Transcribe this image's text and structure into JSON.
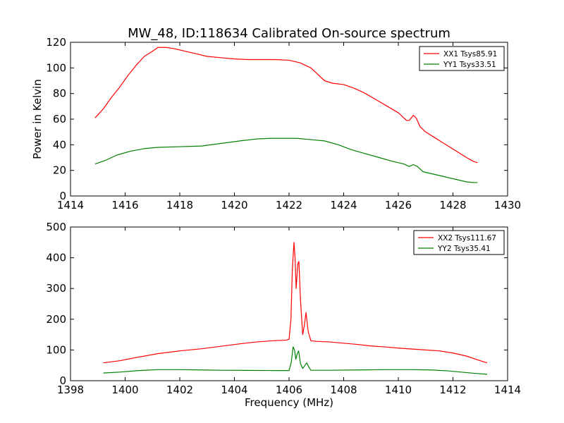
{
  "figure": {
    "title": "MW_48, ID:118634 Calibrated On-source spectrum"
  },
  "chart_data": [
    {
      "type": "line",
      "title": "MW_48, ID:118634 Calibrated On-source spectrum",
      "xlabel": "",
      "ylabel": "Power in Kelvin",
      "xlim": [
        1414,
        1430
      ],
      "ylim": [
        0,
        120
      ],
      "xticks": [
        1414,
        1416,
        1418,
        1420,
        1422,
        1424,
        1426,
        1428,
        1430
      ],
      "yticks": [
        0,
        20,
        40,
        60,
        80,
        100,
        120
      ],
      "grid": false,
      "legend": "top-right",
      "series": [
        {
          "name": "XX1 Tsys85.91",
          "color": "#ff0000",
          "points": [
            [
              1414.9,
              61
            ],
            [
              1415.2,
              68
            ],
            [
              1415.5,
              77
            ],
            [
              1415.8,
              85
            ],
            [
              1416.1,
              94
            ],
            [
              1416.4,
              102
            ],
            [
              1416.7,
              109
            ],
            [
              1417.0,
              113
            ],
            [
              1417.2,
              116
            ],
            [
              1417.5,
              116
            ],
            [
              1417.8,
              115
            ],
            [
              1418.2,
              113
            ],
            [
              1418.6,
              111
            ],
            [
              1419.0,
              109
            ],
            [
              1419.5,
              108
            ],
            [
              1420.0,
              107
            ],
            [
              1420.5,
              106.5
            ],
            [
              1421.0,
              106.5
            ],
            [
              1421.5,
              106.5
            ],
            [
              1422.0,
              106
            ],
            [
              1422.4,
              104
            ],
            [
              1422.8,
              100
            ],
            [
              1423.0,
              96
            ],
            [
              1423.3,
              90
            ],
            [
              1423.6,
              88
            ],
            [
              1424.0,
              87
            ],
            [
              1424.4,
              84
            ],
            [
              1424.8,
              80
            ],
            [
              1425.2,
              75
            ],
            [
              1425.6,
              70
            ],
            [
              1426.0,
              65
            ],
            [
              1426.3,
              59
            ],
            [
              1426.4,
              59
            ],
            [
              1426.55,
              63
            ],
            [
              1426.65,
              61
            ],
            [
              1426.8,
              54
            ],
            [
              1427.0,
              50
            ],
            [
              1427.3,
              46
            ],
            [
              1427.6,
              42
            ],
            [
              1427.9,
              38
            ],
            [
              1428.2,
              34
            ],
            [
              1428.5,
              30
            ],
            [
              1428.75,
              27
            ],
            [
              1428.9,
              26
            ]
          ]
        },
        {
          "name": "YY1 Tsys33.51",
          "color": "#008000",
          "points": [
            [
              1414.9,
              25
            ],
            [
              1415.3,
              28
            ],
            [
              1415.7,
              32
            ],
            [
              1416.2,
              35
            ],
            [
              1416.7,
              37
            ],
            [
              1417.2,
              38
            ],
            [
              1418.0,
              38.5
            ],
            [
              1418.8,
              39
            ],
            [
              1419.5,
              41
            ],
            [
              1420.2,
              43
            ],
            [
              1420.8,
              44.5
            ],
            [
              1421.3,
              45
            ],
            [
              1421.8,
              45
            ],
            [
              1422.3,
              45
            ],
            [
              1422.8,
              44
            ],
            [
              1423.3,
              43
            ],
            [
              1423.8,
              40
            ],
            [
              1424.3,
              36
            ],
            [
              1424.8,
              33
            ],
            [
              1425.3,
              30
            ],
            [
              1425.8,
              27
            ],
            [
              1426.2,
              25
            ],
            [
              1426.4,
              23
            ],
            [
              1426.55,
              24.5
            ],
            [
              1426.7,
              23
            ],
            [
              1426.9,
              19
            ],
            [
              1427.3,
              17
            ],
            [
              1427.7,
              15
            ],
            [
              1428.1,
              13
            ],
            [
              1428.5,
              11
            ],
            [
              1428.75,
              10.5
            ],
            [
              1428.9,
              10.5
            ]
          ]
        }
      ]
    },
    {
      "type": "line",
      "title": "",
      "xlabel": "Frequency (MHz)",
      "ylabel": "",
      "xlim": [
        1398,
        1414
      ],
      "ylim": [
        0,
        500
      ],
      "xticks": [
        1398,
        1400,
        1402,
        1404,
        1406,
        1408,
        1410,
        1412,
        1414
      ],
      "yticks": [
        0,
        100,
        200,
        300,
        400,
        500
      ],
      "grid": false,
      "legend": "top-right",
      "series": [
        {
          "name": "XX2 Tsys111.67",
          "color": "#ff0000",
          "points": [
            [
              1399.2,
              58
            ],
            [
              1399.8,
              65
            ],
            [
              1400.5,
              77
            ],
            [
              1401.2,
              88
            ],
            [
              1402.0,
              97
            ],
            [
              1402.8,
              104
            ],
            [
              1403.5,
              112
            ],
            [
              1404.2,
              120
            ],
            [
              1404.8,
              126
            ],
            [
              1405.4,
              130
            ],
            [
              1405.9,
              132
            ],
            [
              1406.0,
              135
            ],
            [
              1406.07,
              200
            ],
            [
              1406.12,
              360
            ],
            [
              1406.18,
              450
            ],
            [
              1406.22,
              400
            ],
            [
              1406.26,
              300
            ],
            [
              1406.32,
              380
            ],
            [
              1406.36,
              388
            ],
            [
              1406.42,
              260
            ],
            [
              1406.5,
              150
            ],
            [
              1406.56,
              180
            ],
            [
              1406.62,
              222
            ],
            [
              1406.7,
              160
            ],
            [
              1406.8,
              130
            ],
            [
              1407.0,
              128
            ],
            [
              1407.5,
              126
            ],
            [
              1408.0,
              122
            ],
            [
              1408.5,
              118
            ],
            [
              1409.0,
              113
            ],
            [
              1409.5,
              110
            ],
            [
              1410.0,
              106
            ],
            [
              1410.5,
              103
            ],
            [
              1411.0,
              100
            ],
            [
              1411.5,
              97
            ],
            [
              1412.0,
              90
            ],
            [
              1412.5,
              80
            ],
            [
              1413.0,
              65
            ],
            [
              1413.25,
              58
            ]
          ]
        },
        {
          "name": "YY2 Tsys35.41",
          "color": "#008000",
          "points": [
            [
              1399.2,
              25
            ],
            [
              1399.8,
              28
            ],
            [
              1400.5,
              33
            ],
            [
              1401.2,
              36
            ],
            [
              1402.0,
              36
            ],
            [
              1402.8,
              35
            ],
            [
              1403.5,
              34
            ],
            [
              1404.5,
              33.5
            ],
            [
              1405.5,
              33
            ],
            [
              1406.0,
              33
            ],
            [
              1406.08,
              60
            ],
            [
              1406.15,
              110
            ],
            [
              1406.2,
              100
            ],
            [
              1406.25,
              70
            ],
            [
              1406.3,
              88
            ],
            [
              1406.35,
              97
            ],
            [
              1406.42,
              55
            ],
            [
              1406.5,
              40
            ],
            [
              1406.6,
              52
            ],
            [
              1406.65,
              58
            ],
            [
              1406.72,
              45
            ],
            [
              1406.8,
              34
            ],
            [
              1407.5,
              34
            ],
            [
              1408.5,
              35
            ],
            [
              1409.5,
              36
            ],
            [
              1410.5,
              36
            ],
            [
              1411.2,
              35
            ],
            [
              1411.8,
              32
            ],
            [
              1412.3,
              28
            ],
            [
              1412.8,
              24
            ],
            [
              1413.25,
              21
            ]
          ]
        }
      ]
    }
  ]
}
